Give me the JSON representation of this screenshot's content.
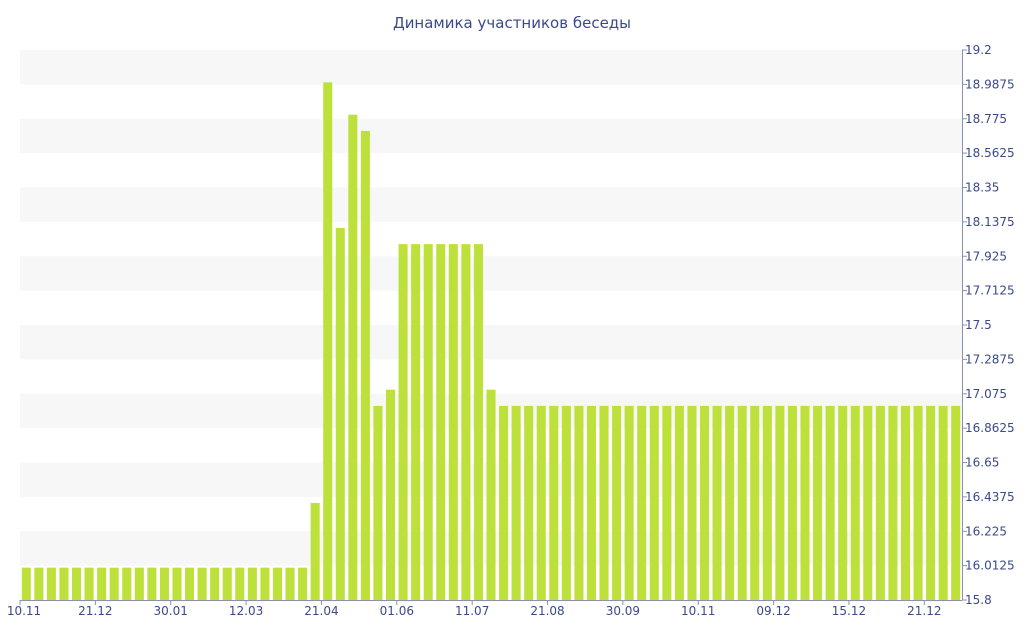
{
  "chart_data": {
    "type": "bar",
    "title": "Динамика участников беседы",
    "xlabel": "",
    "ylabel": "",
    "y_axis_side": "right",
    "ylim": [
      15.8,
      19.2
    ],
    "y_ticks": [
      "19.2",
      "18.9875",
      "18.775",
      "18.5625",
      "18.35",
      "18.1375",
      "17.925",
      "17.7125",
      "17.5",
      "17.2875",
      "17.075",
      "16.8625",
      "16.65",
      "16.4375",
      "16.225",
      "16.0125",
      "15.8"
    ],
    "x_tick_labels": [
      {
        "index": 0,
        "label": "10.11"
      },
      {
        "index": 6,
        "label": "21.12"
      },
      {
        "index": 12,
        "label": "30.01"
      },
      {
        "index": 18,
        "label": "12.03"
      },
      {
        "index": 24,
        "label": "21.04"
      },
      {
        "index": 30,
        "label": "01.06"
      },
      {
        "index": 36,
        "label": "11.07"
      },
      {
        "index": 42,
        "label": "21.08"
      },
      {
        "index": 48,
        "label": "30.09"
      },
      {
        "index": 54,
        "label": "10.11"
      },
      {
        "index": 60,
        "label": "09.12"
      },
      {
        "index": 66,
        "label": "15.12"
      },
      {
        "index": 72,
        "label": "21.12"
      }
    ],
    "values": [
      16,
      16,
      16,
      16,
      16,
      16,
      16,
      16,
      16,
      16,
      16,
      16,
      16,
      16,
      16,
      16,
      16,
      16,
      16,
      16,
      16,
      16,
      16,
      16.4,
      19,
      18.1,
      18.8,
      18.7,
      17,
      17.1,
      18,
      18,
      18,
      18,
      18,
      18,
      18,
      17.1,
      17,
      17,
      17,
      17,
      17,
      17,
      17,
      17,
      17,
      17,
      17,
      17,
      17,
      17,
      17,
      17,
      17,
      17,
      17,
      17,
      17,
      17,
      17,
      17,
      17,
      17,
      17,
      17,
      17,
      17,
      17,
      17,
      17,
      17,
      17,
      17,
      17
    ],
    "bar_color": "#bde03a",
    "band_color": "#f7f7f7",
    "text_color": "#3a4a8a",
    "grid": "alternating horizontal bands"
  }
}
